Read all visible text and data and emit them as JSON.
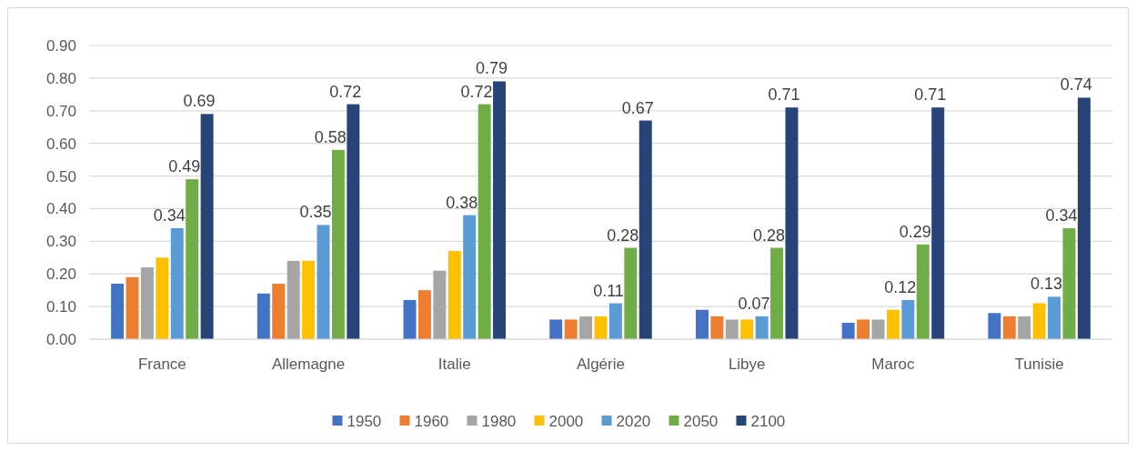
{
  "chart_data": {
    "type": "bar",
    "categories": [
      "France",
      "Allemagne",
      "Italie",
      "Algérie",
      "Libye",
      "Maroc",
      "Tunisie"
    ],
    "series": [
      {
        "name": "1950",
        "color": "#4472c4",
        "values": [
          0.17,
          0.14,
          0.12,
          0.06,
          0.09,
          0.05,
          0.08
        ]
      },
      {
        "name": "1960",
        "color": "#ed7d31",
        "values": [
          0.19,
          0.17,
          0.15,
          0.06,
          0.07,
          0.06,
          0.07
        ]
      },
      {
        "name": "1980",
        "color": "#a5a5a5",
        "values": [
          0.22,
          0.24,
          0.21,
          0.07,
          0.06,
          0.06,
          0.07
        ]
      },
      {
        "name": "2000",
        "color": "#ffc000",
        "values": [
          0.25,
          0.24,
          0.27,
          0.07,
          0.06,
          0.09,
          0.11
        ]
      },
      {
        "name": "2020",
        "color": "#5b9bd5",
        "values": [
          0.34,
          0.35,
          0.38,
          0.11,
          0.07,
          0.12,
          0.13
        ],
        "value_labels": [
          "0.34",
          "0.35",
          "0.38",
          "0.11",
          "0.07",
          "0.12",
          "0.13"
        ]
      },
      {
        "name": "2050",
        "color": "#70ad47",
        "values": [
          0.49,
          0.58,
          0.72,
          0.28,
          0.28,
          0.29,
          0.34
        ],
        "value_labels": [
          "0.49",
          "0.58",
          "0.72",
          "0.28",
          "0.28",
          "0.29",
          "0.34"
        ]
      },
      {
        "name": "2100",
        "color": "#264478",
        "values": [
          0.69,
          0.72,
          0.79,
          0.67,
          0.71,
          0.71,
          0.74
        ],
        "value_labels": [
          "0.69",
          "0.72",
          "0.79",
          "0.67",
          "0.71",
          "0.71",
          "0.74"
        ]
      }
    ],
    "ylim": [
      0,
      0.9
    ],
    "yticks": [
      {
        "value": 0,
        "label": "0.00"
      },
      {
        "value": 0.1,
        "label": "0.10"
      },
      {
        "value": 0.2,
        "label": "0.20"
      },
      {
        "value": 0.3,
        "label": "0.30"
      },
      {
        "value": 0.4,
        "label": "0.40"
      },
      {
        "value": 0.5,
        "label": "0.50"
      },
      {
        "value": 0.6,
        "label": "0.60"
      },
      {
        "value": 0.7,
        "label": "0.70"
      },
      {
        "value": 0.8,
        "label": "0.80"
      },
      {
        "value": 0.9,
        "label": "0.90"
      }
    ],
    "grid": "y",
    "legend": "bottom"
  }
}
